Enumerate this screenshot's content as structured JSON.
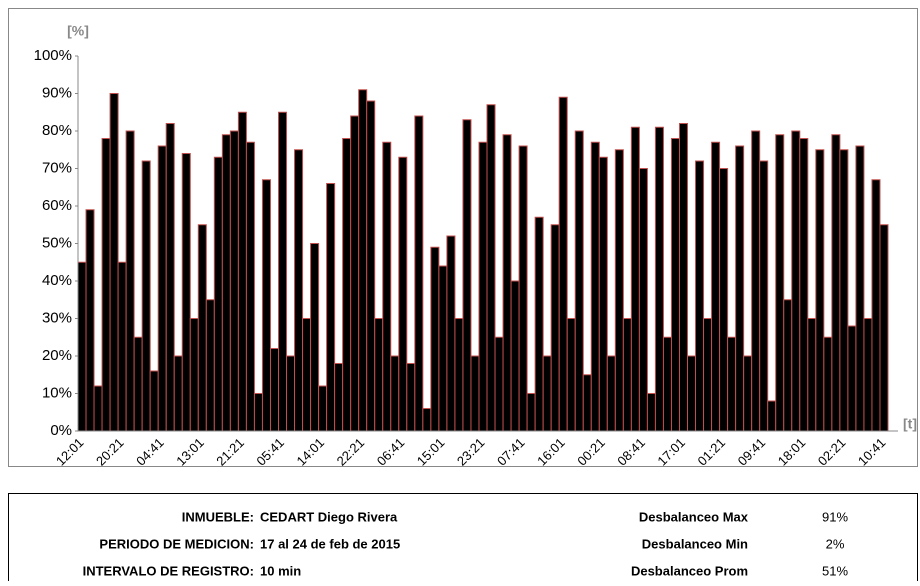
{
  "chart_data": {
    "type": "bar",
    "y_label": "[%]",
    "x_label": "[t]",
    "color": "#000000",
    "edge_color": "#c0504d",
    "categories": [
      "12:01",
      null,
      null,
      null,
      null,
      "20:21",
      null,
      null,
      null,
      null,
      "04:41",
      null,
      null,
      null,
      null,
      "13:01",
      null,
      null,
      null,
      null,
      "21:21",
      null,
      null,
      null,
      null,
      "05:41",
      null,
      null,
      null,
      null,
      "14:01",
      null,
      null,
      null,
      null,
      "22:21",
      null,
      null,
      null,
      null,
      "06:41",
      null,
      null,
      null,
      null,
      "15:01",
      null,
      null,
      null,
      null,
      "23:21",
      null,
      null,
      null,
      null,
      "07:41",
      null,
      null,
      null,
      null,
      "16:01",
      null,
      null,
      null,
      null,
      "00:21",
      null,
      null,
      null,
      null,
      "08:41",
      null,
      null,
      null,
      null,
      "17:01",
      null,
      null,
      null,
      null,
      "01:21",
      null,
      null,
      null,
      null,
      "09:41",
      null,
      null,
      null,
      null,
      "18:01",
      null,
      null,
      null,
      null,
      "02:21",
      null,
      null,
      null,
      null,
      "10:41"
    ],
    "values": [
      45,
      59,
      12,
      78,
      90,
      45,
      80,
      25,
      72,
      16,
      76,
      82,
      20,
      74,
      30,
      55,
      35,
      73,
      79,
      80,
      85,
      77,
      10,
      67,
      22,
      85,
      20,
      75,
      30,
      50,
      12,
      66,
      18,
      78,
      84,
      91,
      88,
      30,
      77,
      20,
      73,
      18,
      84,
      6,
      49,
      44,
      52,
      30,
      83,
      20,
      77,
      87,
      25,
      79,
      40,
      76,
      10,
      57,
      20,
      55,
      89,
      30,
      80,
      15,
      77,
      73,
      20,
      75,
      30,
      81,
      70,
      10,
      81,
      25,
      78,
      82,
      20,
      72,
      30,
      77,
      70,
      25,
      76,
      20,
      80,
      72,
      8,
      79,
      35,
      80,
      78,
      30,
      75,
      25,
      79,
      75,
      28,
      76,
      30,
      67,
      55
    ],
    "ylim": [
      0,
      100
    ],
    "yticks": [
      {
        "value": 0,
        "label": "0%"
      },
      {
        "value": 10,
        "label": "10%"
      },
      {
        "value": 20,
        "label": "20%"
      },
      {
        "value": 30,
        "label": "30%"
      },
      {
        "value": 40,
        "label": "40%"
      },
      {
        "value": 50,
        "label": "50%"
      },
      {
        "value": 60,
        "label": "60%"
      },
      {
        "value": 70,
        "label": "70%"
      },
      {
        "value": 80,
        "label": "80%"
      },
      {
        "value": 90,
        "label": "90%"
      },
      {
        "value": 100,
        "label": "100%"
      }
    ]
  },
  "table": {
    "left": [
      {
        "label": "INMUEBLE:",
        "value": "CEDART Diego Rivera"
      },
      {
        "label": "PERIODO DE MEDICION:",
        "value": "17 al 24 de feb de 2015"
      },
      {
        "label": "INTERVALO DE REGISTRO:",
        "value": "10 min"
      }
    ],
    "right": [
      {
        "label": "Desbalanceo Max",
        "value": "91%"
      },
      {
        "label": "Desbalanceo Min",
        "value": "2%"
      },
      {
        "label": "Desbalanceo Prom",
        "value": "51%"
      }
    ]
  }
}
